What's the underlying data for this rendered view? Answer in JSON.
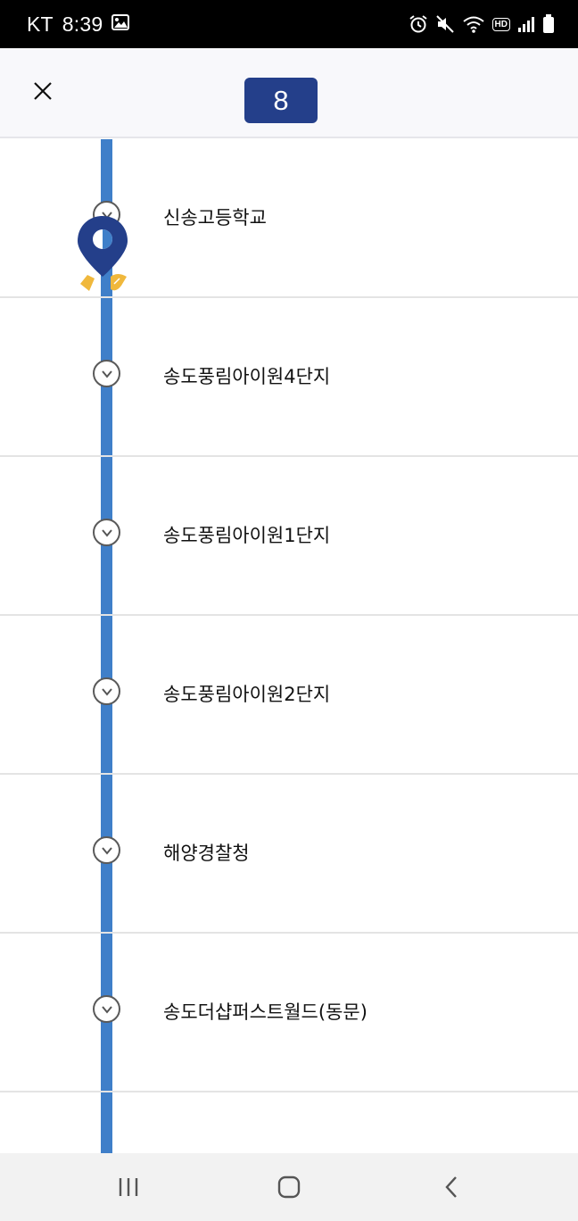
{
  "status_bar": {
    "carrier": "KT",
    "time": "8:39",
    "icons": [
      "gallery-icon",
      "alarm-icon",
      "mute-icon",
      "wifi-icon",
      "hd-icon",
      "signal-icon",
      "battery-icon"
    ],
    "hd_label": "HD"
  },
  "header": {
    "route_number": "8",
    "close_icon": "close-icon",
    "badge_color": "#243f8a"
  },
  "route": {
    "line_color": "#3f7fc9",
    "marker_color": "#243f8a",
    "foot_color": "#f0b83c",
    "stops": [
      {
        "name": "신송고등학교"
      },
      {
        "name": "송도풍림아이원4단지"
      },
      {
        "name": "송도풍림아이원1단지"
      },
      {
        "name": "송도풍림아이원2단지"
      },
      {
        "name": "해양경찰청"
      },
      {
        "name": "송도더샵퍼스트월드(동문)"
      }
    ]
  },
  "nav_bar": {
    "buttons": [
      "recent-apps-icon",
      "home-icon",
      "back-icon"
    ]
  }
}
